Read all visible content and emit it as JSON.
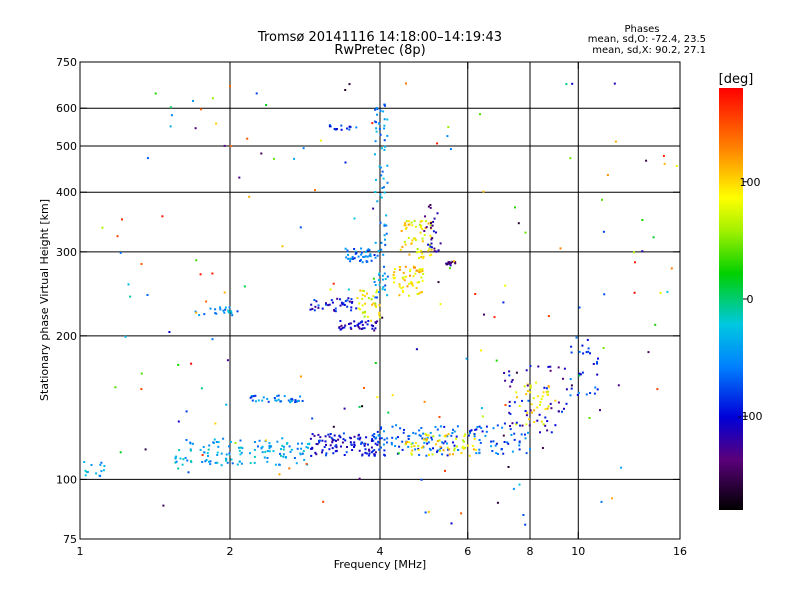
{
  "title": {
    "line1": "Tromsø 20141116 14:18:00–14:19:43",
    "line2": "RwPretec (8p)"
  },
  "phases_box": {
    "heading": "Phases",
    "o_line": "mean, sd,O: -72.4, 23.5",
    "x_line": "mean, sd,X:  90.2, 27.1"
  },
  "chart_data": {
    "type": "scatter",
    "xlabel": "Frequency [MHz]",
    "ylabel": "Stationary phase Virtual Height [km]",
    "xscale": "log",
    "yscale": "log",
    "xlim": [
      1,
      16
    ],
    "ylim": [
      75,
      750
    ],
    "xticks": [
      1,
      2,
      4,
      6,
      8,
      10,
      16
    ],
    "yticks": [
      75,
      100,
      200,
      300,
      400,
      500,
      600,
      750
    ],
    "xgrid": [
      2,
      4,
      6,
      8,
      10
    ],
    "ygrid": [
      100,
      200,
      300,
      400,
      500,
      600
    ],
    "grid": true,
    "colorbar": {
      "label": "[deg]",
      "range": [
        -180,
        180
      ],
      "ticks": [
        100,
        0,
        -100
      ]
    },
    "clusters": [
      {
        "f_range": [
          1.0,
          1.12
        ],
        "h_range": [
          100,
          110
        ],
        "phase": -40,
        "count": 14
      },
      {
        "f_range": [
          1.55,
          2.9
        ],
        "h_range": [
          107,
          122
        ],
        "phase": -40,
        "count": 130
      },
      {
        "f_range": [
          2.9,
          4.0
        ],
        "h_range": [
          112,
          125
        ],
        "phase": -100,
        "count": 110
      },
      {
        "f_range": [
          3.9,
          5.8
        ],
        "h_range": [
          112,
          130
        ],
        "phase": -70,
        "count": 90
      },
      {
        "f_range": [
          4.5,
          6.3
        ],
        "h_range": [
          112,
          125
        ],
        "phase": 90,
        "count": 60
      },
      {
        "f_range": [
          6.0,
          8.0
        ],
        "h_range": [
          113,
          130
        ],
        "phase": -70,
        "count": 55
      },
      {
        "f_range": [
          7.5,
          9.0
        ],
        "h_range": [
          130,
          160
        ],
        "phase": 90,
        "count": 40
      },
      {
        "f_range": [
          7.0,
          9.5
        ],
        "h_range": [
          125,
          175
        ],
        "phase": -110,
        "count": 50
      },
      {
        "f_range": [
          9.5,
          11.0
        ],
        "h_range": [
          150,
          200
        ],
        "phase": -80,
        "count": 30
      },
      {
        "f_range": [
          3.3,
          4.0
        ],
        "h_range": [
          205,
          215
        ],
        "phase": -110,
        "count": 40
      },
      {
        "f_range": [
          2.9,
          3.6
        ],
        "h_range": [
          225,
          240
        ],
        "phase": -100,
        "count": 40
      },
      {
        "f_range": [
          3.4,
          3.9
        ],
        "h_range": [
          285,
          305
        ],
        "phase": -60,
        "count": 40
      },
      {
        "f_range": [
          3.9,
          4.15
        ],
        "h_range": [
          240,
          620
        ],
        "phase": -50,
        "count": 80
      },
      {
        "f_range": [
          3.6,
          4.0
        ],
        "h_range": [
          215,
          250
        ],
        "phase": 80,
        "count": 35
      },
      {
        "f_range": [
          4.2,
          4.9
        ],
        "h_range": [
          240,
          280
        ],
        "phase": 100,
        "count": 60
      },
      {
        "f_range": [
          4.4,
          5.1
        ],
        "h_range": [
          290,
          350
        ],
        "phase": 90,
        "count": 60
      },
      {
        "f_range": [
          4.9,
          5.3
        ],
        "h_range": [
          300,
          380
        ],
        "phase": -120,
        "count": 25
      },
      {
        "f_range": [
          5.4,
          5.7
        ],
        "h_range": [
          280,
          286
        ],
        "phase": -140,
        "count": 12
      },
      {
        "f_range": [
          3.1,
          3.6
        ],
        "h_range": [
          540,
          555
        ],
        "phase": -80,
        "count": 15
      },
      {
        "f_range": [
          1.7,
          2.1
        ],
        "h_range": [
          220,
          230
        ],
        "phase": -50,
        "count": 20
      },
      {
        "f_range": [
          2.2,
          2.8
        ],
        "h_range": [
          145,
          150
        ],
        "phase": -60,
        "count": 35
      },
      {
        "f_range": [
          1.1,
          16.0
        ],
        "h_range": [
          80,
          680
        ],
        "phase": 0,
        "count": 180
      }
    ]
  }
}
